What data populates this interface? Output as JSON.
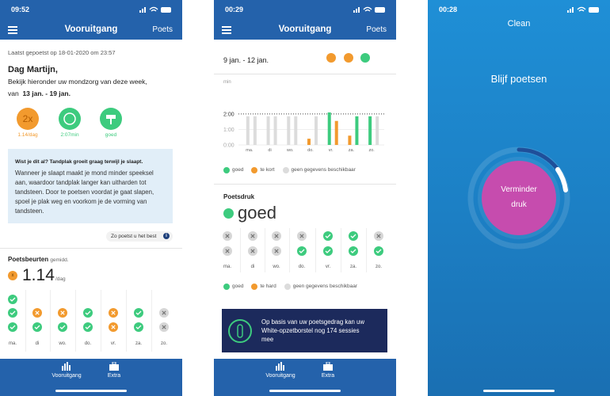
{
  "screens": [
    {
      "status_time": "09:52",
      "header": {
        "title": "Vooruitgang",
        "action": "Poets"
      },
      "last_brushed": "Laatst gepoetst op 18-01-2020 om 23:57",
      "greeting": "Dag Martijn,",
      "intro": "Bekijk hieronder uw mondzorg van deze week,",
      "range_prefix": "van",
      "range": "13 jan. - 19 jan.",
      "badges": [
        {
          "icon": "2x",
          "label": "1.14/dag",
          "color": "#f29a2e"
        },
        {
          "label": "2:07min",
          "color": "#3dcb7e"
        },
        {
          "label": "goed",
          "color": "#3dcb7e"
        }
      ],
      "tip": {
        "title": "Wist je dit al? Tandplak groeit graag terwijl je slaapt.",
        "body": [
          "Wanneer je slaapt maakt je mond minder speeksel",
          "aan, waardoor tandplak langer kan uitharden tot",
          "tandsteen. Door te poetsen voordat je gaat slapen,",
          "spoel je plak weg en voorkom je de vorming van",
          "tandsteen."
        ]
      },
      "tip_link": "Zo poetst u het best",
      "sessions": {
        "title": "Poetsbeurten",
        "subtitle": "gemidd.",
        "value": 1.14,
        "unit": "/dag"
      },
      "days": [
        "ma.",
        "di",
        "wo.",
        "do.",
        "vr.",
        "za.",
        "zo."
      ],
      "icons": [
        [
          "#3dcb7e",
          "#3dcb7e",
          "#3dcb7e"
        ],
        [
          null,
          "#f29a2e",
          "#3dcb7e"
        ],
        [
          null,
          "#f29a2e",
          "#3dcb7e"
        ],
        [
          null,
          "#3dcb7e",
          "#3dcb7e"
        ],
        [
          null,
          "#f29a2e",
          "#f29a2e"
        ],
        [
          null,
          "#3dcb7e",
          "#3dcb7e"
        ],
        [
          null,
          "#d6d6d6",
          "#d6d6d6"
        ]
      ],
      "nav": [
        "Vooruitgang",
        "Extra"
      ]
    },
    {
      "status_time": "00:29",
      "header": {
        "title": "Vooruitgang",
        "action": "Poets"
      },
      "range": "9 jan. - 12 jan.",
      "summary_colors": [
        "#f29a2e",
        "#f29a2e",
        "#3dcb7e"
      ],
      "chart": {
        "type": "bar",
        "ylabel": "min",
        "ylim": [
          0,
          2.25
        ],
        "yticks": [
          {
            "value": 0,
            "label": "0:00"
          },
          {
            "value": 1,
            "label": "1:00"
          },
          {
            "value": 2,
            "label": "2:00"
          }
        ],
        "categories": [
          "ma.",
          "di",
          "wo.",
          "do.",
          "vr.",
          "za.",
          "zo."
        ],
        "values": [
          [
            1.85,
            1.85
          ],
          [
            1.85,
            1.85
          ],
          [
            1.85,
            1.85
          ],
          [
            0.4,
            1.85
          ],
          [
            2.1,
            1.55
          ],
          [
            0.6,
            1.85
          ],
          [
            1.85,
            1.85
          ]
        ],
        "colors": [
          [
            "#dcdcdc",
            "#dcdcdc"
          ],
          [
            "#dcdcdc",
            "#dcdcdc"
          ],
          [
            "#dcdcdc",
            "#dcdcdc"
          ],
          [
            "#f29a2e",
            "#dcdcdc"
          ],
          [
            "#3dcb7e",
            "#f29a2e"
          ],
          [
            "#f29a2e",
            "#3dcb7e"
          ],
          [
            "#3dcb7e",
            "#dcdcdc"
          ]
        ],
        "legend": [
          {
            "name": "goed",
            "color": "#3dcb7e"
          },
          {
            "name": "te kort",
            "color": "#f29a2e"
          },
          {
            "name": "geen gegevens beschikbaar",
            "color": "#dcdcdc"
          }
        ]
      },
      "pressure": {
        "title": "Poetsdruk",
        "value": "goed",
        "days": [
          "ma.",
          "di",
          "wo.",
          "do.",
          "vr.",
          "za.",
          "zo."
        ],
        "icons": [
          [
            "#d6d6d6",
            "#d6d6d6"
          ],
          [
            "#d6d6d6",
            "#d6d6d6"
          ],
          [
            "#d6d6d6",
            "#d6d6d6"
          ],
          [
            "#d6d6d6",
            "#3dcb7e"
          ],
          [
            "#3dcb7e",
            "#3dcb7e"
          ],
          [
            "#3dcb7e",
            "#3dcb7e"
          ],
          [
            "#d6d6d6",
            "#3dcb7e"
          ]
        ],
        "legend": [
          {
            "name": "goed",
            "color": "#3dcb7e"
          },
          {
            "name": "te hard",
            "color": "#f29a2e"
          },
          {
            "name": "geen gegevens beschikbaar",
            "color": "#dcdcdc"
          }
        ]
      },
      "brush_note": [
        "Op basis van uw poetsgedrag kan uw",
        "White-opzetborstel nog 174 sessies",
        "mee"
      ],
      "nav": [
        "Vooruitgang",
        "Extra"
      ]
    },
    {
      "status_time": "00:28",
      "mode": "Clean",
      "message": "Blijf poetsen",
      "prompt": [
        "Verminder",
        "druk"
      ]
    }
  ]
}
